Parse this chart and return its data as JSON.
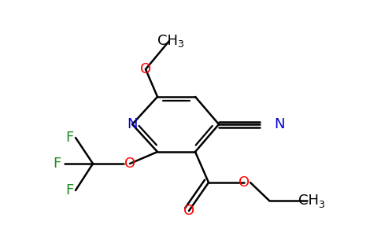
{
  "bg_color": "#ffffff",
  "bond_color": "#000000",
  "bond_width": 1.8,
  "atom_colors": {
    "N": "#0000cd",
    "O": "#ff0000",
    "F": "#228B22",
    "C": "#000000"
  },
  "font_size_atom": 13,
  "font_size_sub": 9,
  "figsize": [
    4.84,
    3.0
  ],
  "dpi": 100
}
